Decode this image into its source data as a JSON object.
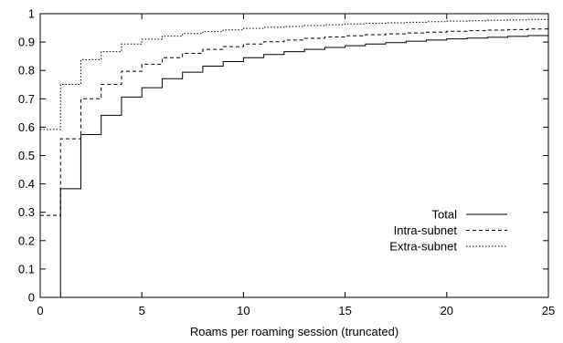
{
  "chart_data": {
    "type": "line",
    "step": true,
    "xlabel": "Roams per roaming session (truncated)",
    "ylabel": "",
    "xlim": [
      0,
      25
    ],
    "ylim": [
      0,
      1
    ],
    "xticks": [
      0,
      5,
      10,
      15,
      20,
      25
    ],
    "yticks": [
      0,
      0.1,
      0.2,
      0.3,
      0.4,
      0.5,
      0.6,
      0.7,
      0.8,
      0.9,
      1
    ],
    "grid": false,
    "legend": "center-right",
    "series": [
      {
        "name": "Total",
        "style": "solid",
        "x": [
          1,
          2,
          3,
          4,
          5,
          6,
          7,
          8,
          9,
          10,
          11,
          12,
          13,
          14,
          15,
          16,
          17,
          18,
          19,
          20,
          21,
          22,
          23,
          24,
          25
        ],
        "y": [
          0.383,
          0.574,
          0.642,
          0.706,
          0.739,
          0.771,
          0.794,
          0.815,
          0.831,
          0.845,
          0.856,
          0.866,
          0.874,
          0.881,
          0.887,
          0.893,
          0.898,
          0.903,
          0.907,
          0.911,
          0.914,
          0.917,
          0.92,
          0.923,
          0.926
        ]
      },
      {
        "name": "Intra-subnet",
        "style": "dashed",
        "x": [
          0,
          1,
          2,
          3,
          4,
          5,
          6,
          7,
          8,
          9,
          10,
          11,
          12,
          13,
          14,
          15,
          16,
          17,
          18,
          19,
          20,
          21,
          22,
          23,
          24,
          25
        ],
        "y": [
          0.289,
          0.559,
          0.7,
          0.751,
          0.797,
          0.822,
          0.845,
          0.86,
          0.874,
          0.884,
          0.893,
          0.901,
          0.907,
          0.913,
          0.918,
          0.922,
          0.926,
          0.929,
          0.932,
          0.935,
          0.938,
          0.94,
          0.942,
          0.944,
          0.946,
          0.948
        ]
      },
      {
        "name": "Extra-subnet",
        "style": "dotted",
        "x": [
          0,
          1,
          2,
          3,
          4,
          5,
          6,
          7,
          8,
          9,
          10,
          11,
          12,
          13,
          14,
          15,
          16,
          17,
          18,
          19,
          20,
          21,
          22,
          23,
          24,
          25
        ],
        "y": [
          0.592,
          0.751,
          0.838,
          0.866,
          0.893,
          0.91,
          0.921,
          0.93,
          0.937,
          0.943,
          0.948,
          0.952,
          0.955,
          0.958,
          0.961,
          0.964,
          0.966,
          0.968,
          0.97,
          0.972,
          0.974,
          0.975,
          0.977,
          0.978,
          0.98,
          0.982
        ]
      }
    ]
  }
}
